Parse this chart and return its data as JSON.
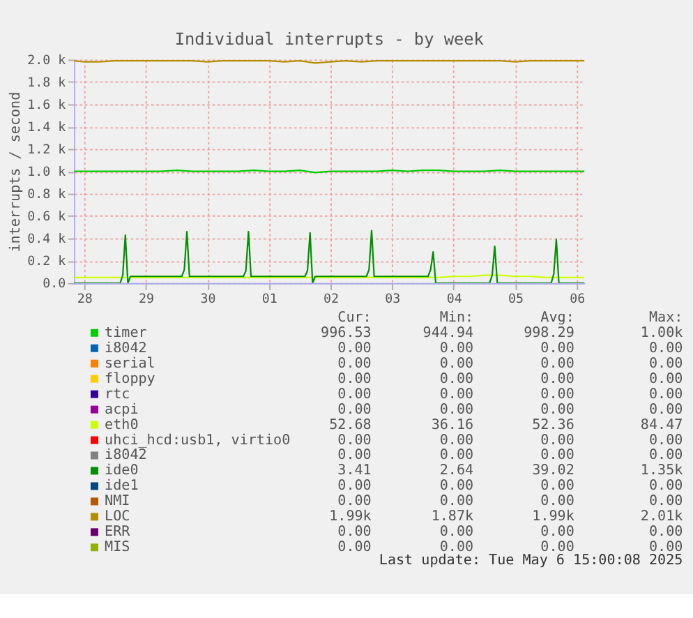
{
  "chart_data": {
    "type": "line",
    "title": "Individual interrupts - by week",
    "ylabel": "interrupts / second",
    "xlim": [
      "2025-04-28T08:00",
      "2025-05-06T15:00"
    ],
    "xticks": [
      {
        "value": "2025-04-28T12:00",
        "label": "28"
      },
      {
        "value": "2025-04-29T12:00",
        "label": "29"
      },
      {
        "value": "2025-04-30T12:00",
        "label": "30"
      },
      {
        "value": "2025-05-01T12:00",
        "label": "01"
      },
      {
        "value": "2025-05-02T12:00",
        "label": "02"
      },
      {
        "value": "2025-05-03T12:00",
        "label": "03"
      },
      {
        "value": "2025-05-04T12:00",
        "label": "04"
      },
      {
        "value": "2025-05-05T12:00",
        "label": "05"
      },
      {
        "value": "2025-05-06T12:00",
        "label": "06"
      }
    ],
    "ylim": [
      0,
      2000
    ],
    "yticks": [
      {
        "value": 0,
        "label": "0.0"
      },
      {
        "value": 200,
        "label": "0.2 k"
      },
      {
        "value": 400,
        "label": "0.4 k"
      },
      {
        "value": 600,
        "label": "0.6 k"
      },
      {
        "value": 800,
        "label": "0.8 k"
      },
      {
        "value": 1000,
        "label": "1.0 k"
      },
      {
        "value": 1200,
        "label": "1.2 k"
      },
      {
        "value": 1400,
        "label": "1.4 k"
      },
      {
        "value": 1600,
        "label": "1.6 k"
      },
      {
        "value": 1800,
        "label": "1.8 k"
      },
      {
        "value": 2000,
        "label": "2.0 k"
      }
    ],
    "grid": true,
    "legend": "bottom",
    "x": [
      "2025-04-28T08:00",
      "2025-04-28T12:00",
      "2025-04-28T18:00",
      "2025-04-29T00:00",
      "2025-04-29T06:00",
      "2025-04-29T12:00",
      "2025-04-29T18:00",
      "2025-04-30T00:00",
      "2025-04-30T06:00",
      "2025-04-30T12:00",
      "2025-04-30T18:00",
      "2025-05-01T00:00",
      "2025-05-01T06:00",
      "2025-05-01T12:00",
      "2025-05-01T18:00",
      "2025-05-02T00:00",
      "2025-05-02T06:00",
      "2025-05-02T12:00",
      "2025-05-02T18:00",
      "2025-05-03T00:00",
      "2025-05-03T06:00",
      "2025-05-03T12:00",
      "2025-05-03T18:00",
      "2025-05-04T00:00",
      "2025-05-04T06:00",
      "2025-05-04T12:00",
      "2025-05-04T18:00",
      "2025-05-05T00:00",
      "2025-05-05T06:00",
      "2025-05-05T12:00",
      "2025-05-05T18:00",
      "2025-05-06T00:00",
      "2025-05-06T06:00",
      "2025-05-06T12:00",
      "2025-05-06T15:00"
    ],
    "series": [
      {
        "name": "timer",
        "color": "#00cc00",
        "values": [
          1000,
          1000,
          1000,
          1000,
          1000,
          1000,
          1000,
          1010,
          1000,
          1000,
          1000,
          1000,
          1010,
          1000,
          1000,
          1010,
          990,
          1000,
          1000,
          1000,
          1000,
          1010,
          1000,
          1010,
          1010,
          1000,
          1000,
          1000,
          1010,
          1000,
          1000,
          1000,
          1000,
          1000,
          1000
        ]
      },
      {
        "name": "i8042",
        "color": "#0066b3",
        "values": [
          null,
          null,
          null,
          null,
          null,
          null,
          null,
          null,
          null,
          null,
          null,
          null,
          null,
          null,
          null,
          null,
          null,
          null,
          null,
          null,
          null,
          null,
          null,
          null,
          null,
          null,
          null,
          null,
          null,
          null,
          null,
          null,
          null,
          null,
          null
        ]
      },
      {
        "name": "serial",
        "color": "#ff8000",
        "values": [
          null,
          null,
          null,
          null,
          null,
          null,
          null,
          null,
          null,
          null,
          null,
          null,
          null,
          null,
          null,
          null,
          null,
          null,
          null,
          null,
          null,
          null,
          null,
          null,
          null,
          null,
          null,
          null,
          null,
          null,
          null,
          null,
          null,
          null,
          null
        ]
      },
      {
        "name": "floppy",
        "color": "#ffcc00",
        "values": [
          null,
          null,
          null,
          null,
          null,
          null,
          null,
          null,
          null,
          null,
          null,
          null,
          null,
          null,
          null,
          null,
          null,
          null,
          null,
          null,
          null,
          null,
          null,
          null,
          null,
          null,
          null,
          null,
          null,
          null,
          null,
          null,
          null,
          null,
          null
        ]
      },
      {
        "name": "rtc",
        "color": "#330099",
        "values": [
          null,
          null,
          null,
          null,
          null,
          null,
          null,
          null,
          null,
          null,
          null,
          null,
          null,
          null,
          null,
          null,
          null,
          null,
          null,
          null,
          null,
          null,
          null,
          null,
          null,
          null,
          null,
          null,
          null,
          null,
          null,
          null,
          null,
          null,
          null
        ]
      },
      {
        "name": "acpi",
        "color": "#990099",
        "values": [
          null,
          null,
          null,
          null,
          null,
          null,
          null,
          null,
          null,
          null,
          null,
          null,
          null,
          null,
          null,
          null,
          null,
          null,
          null,
          null,
          null,
          null,
          null,
          null,
          null,
          null,
          null,
          null,
          null,
          null,
          null,
          null,
          null,
          null,
          null
        ]
      },
      {
        "name": "eth0",
        "color": "#ccff00",
        "values": [
          50,
          50,
          50,
          50,
          50,
          50,
          50,
          50,
          50,
          50,
          50,
          50,
          50,
          50,
          50,
          50,
          50,
          50,
          50,
          50,
          50,
          50,
          50,
          50,
          50,
          60,
          60,
          70,
          70,
          60,
          60,
          50,
          50,
          50,
          50
        ]
      },
      {
        "name": "uhci_hcd:usb1, virtio0",
        "color": "#ff0000",
        "values": [
          null,
          null,
          null,
          null,
          null,
          null,
          null,
          null,
          null,
          null,
          null,
          null,
          null,
          null,
          null,
          null,
          null,
          null,
          null,
          null,
          null,
          null,
          null,
          null,
          null,
          null,
          null,
          null,
          null,
          null,
          null,
          null,
          null,
          null,
          null
        ]
      },
      {
        "name": "i8042",
        "color": "#808080",
        "values": [
          null,
          null,
          null,
          null,
          null,
          null,
          null,
          null,
          null,
          null,
          null,
          null,
          null,
          null,
          null,
          null,
          null,
          null,
          null,
          null,
          null,
          null,
          null,
          null,
          null,
          null,
          null,
          null,
          null,
          null,
          null,
          null,
          null,
          null,
          null
        ]
      },
      {
        "name": "ide0",
        "color": "#008f00",
        "x": [
          "2025-04-28T08:00",
          "2025-04-29T02:00",
          "2025-04-29T03:00",
          "2025-04-29T04:00",
          "2025-04-29T05:00",
          "2025-04-29T06:00",
          "2025-04-30T02:00",
          "2025-04-30T03:00",
          "2025-04-30T04:00",
          "2025-04-30T05:00",
          "2025-05-01T02:00",
          "2025-05-01T03:00",
          "2025-05-01T04:00",
          "2025-05-01T05:00",
          "2025-05-02T02:00",
          "2025-05-02T03:00",
          "2025-05-02T04:00",
          "2025-05-02T05:00",
          "2025-05-02T06:00",
          "2025-05-03T02:00",
          "2025-05-03T03:00",
          "2025-05-03T04:00",
          "2025-05-03T05:00",
          "2025-05-04T02:00",
          "2025-05-04T03:00",
          "2025-05-04T04:00",
          "2025-05-04T05:00",
          "2025-05-05T02:00",
          "2025-05-05T03:00",
          "2025-05-05T04:00",
          "2025-05-05T05:00",
          "2025-05-06T02:00",
          "2025-05-06T03:00",
          "2025-05-06T04:00",
          "2025-05-06T05:00",
          "2025-05-06T15:00"
        ],
        "values": [
          0,
          0,
          70,
          430,
          0,
          60,
          60,
          120,
          460,
          60,
          60,
          110,
          460,
          60,
          60,
          110,
          450,
          0,
          60,
          60,
          120,
          470,
          60,
          60,
          120,
          280,
          0,
          0,
          70,
          330,
          0,
          0,
          80,
          390,
          0,
          0
        ]
      },
      {
        "name": "ide1",
        "color": "#00487d",
        "values": [
          null,
          null,
          null,
          null,
          null,
          null,
          null,
          null,
          null,
          null,
          null,
          null,
          null,
          null,
          null,
          null,
          null,
          null,
          null,
          null,
          null,
          null,
          null,
          null,
          null,
          null,
          null,
          null,
          null,
          null,
          null,
          null,
          null,
          null,
          null
        ]
      },
      {
        "name": "NMI",
        "color": "#b35a00",
        "values": [
          null,
          null,
          null,
          null,
          null,
          null,
          null,
          null,
          null,
          null,
          null,
          null,
          null,
          null,
          null,
          null,
          null,
          null,
          null,
          null,
          null,
          null,
          null,
          null,
          null,
          null,
          null,
          null,
          null,
          null,
          null,
          null,
          null,
          null,
          null
        ]
      },
      {
        "name": "LOC",
        "color": "#b38f00",
        "values": [
          1990,
          1980,
          1980,
          1990,
          1990,
          1990,
          1990,
          1990,
          1990,
          1980,
          1990,
          1990,
          1990,
          1990,
          1980,
          1990,
          1970,
          1980,
          1990,
          1980,
          1990,
          1990,
          1990,
          1990,
          1990,
          1990,
          1990,
          1990,
          1990,
          1980,
          1990,
          1990,
          1990,
          1990,
          1990
        ]
      },
      {
        "name": "ERR",
        "color": "#6b006b",
        "values": [
          null,
          null,
          null,
          null,
          null,
          null,
          null,
          null,
          null,
          null,
          null,
          null,
          null,
          null,
          null,
          null,
          null,
          null,
          null,
          null,
          null,
          null,
          null,
          null,
          null,
          null,
          null,
          null,
          null,
          null,
          null,
          null,
          null,
          null,
          null
        ]
      },
      {
        "name": "MIS",
        "color": "#8fb300",
        "values": [
          null,
          null,
          null,
          null,
          null,
          null,
          null,
          null,
          null,
          null,
          null,
          null,
          null,
          null,
          null,
          null,
          null,
          null,
          null,
          null,
          null,
          null,
          null,
          null,
          null,
          null,
          null,
          null,
          null,
          null,
          null,
          null,
          null,
          null,
          null
        ]
      }
    ],
    "annotations": [
      "Cur:",
      "Min:",
      "Avg:",
      "Max:",
      "996.53",
      "944.94",
      "998.29",
      "1.00k",
      "0.00",
      "0.00",
      "0.00",
      "0.00",
      "0.00",
      "0.00",
      "0.00",
      "0.00",
      "0.00",
      "0.00",
      "0.00",
      "0.00",
      "0.00",
      "0.00",
      "0.00",
      "0.00",
      "0.00",
      "0.00",
      "0.00",
      "0.00",
      "52.68",
      "36.16",
      "52.36",
      "84.47",
      "0.00",
      "0.00",
      "0.00",
      "0.00",
      "0.00",
      "0.00",
      "0.00",
      "0.00",
      "3.41",
      "2.64",
      "39.02",
      "1.35k",
      "0.00",
      "0.00",
      "0.00",
      "0.00",
      "0.00",
      "0.00",
      "0.00",
      "0.00",
      "1.99k",
      "1.87k",
      "1.99k",
      "2.01k",
      "0.00",
      "0.00",
      "0.00",
      "0.00",
      "0.00",
      "0.00",
      "0.00",
      "0.00",
      "Last update: Tue May  6 15:00:08 2025"
    ]
  }
}
